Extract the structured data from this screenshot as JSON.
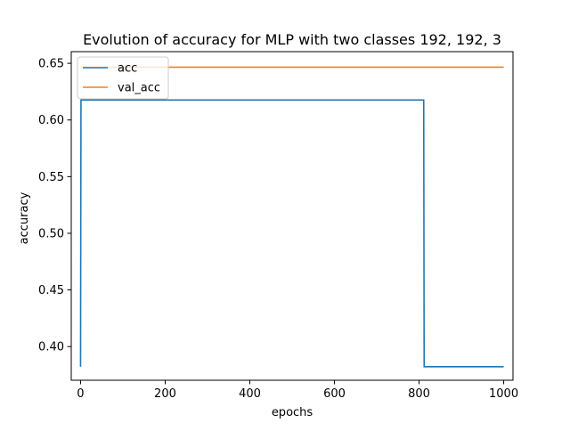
{
  "chart_data": {
    "type": "line",
    "title": "Evolution of accuracy for MLP with two classes 192, 192, 3",
    "xlabel": "epochs",
    "ylabel": "accuracy",
    "xlim": [
      -22,
      1022
    ],
    "ylim": [
      0.3703,
      0.6603
    ],
    "x_ticks": [
      0,
      200,
      400,
      600,
      800,
      1000
    ],
    "x_tick_labels": [
      "0",
      "200",
      "400",
      "600",
      "800",
      "1000"
    ],
    "y_ticks": [
      0.4,
      0.45,
      0.5,
      0.55,
      0.6,
      0.65
    ],
    "y_tick_labels": [
      "0.40",
      "0.45",
      "0.50",
      "0.55",
      "0.60",
      "0.65"
    ],
    "grid": false,
    "legend_position": "upper-left",
    "series": [
      {
        "name": "acc",
        "color": "#1f77b4",
        "x": [
          0,
          1,
          811,
          812,
          1000
        ],
        "y": [
          0.3822,
          0.6176,
          0.6176,
          0.3822,
          0.3822
        ]
      },
      {
        "name": "val_acc",
        "color": "#ff7f0e",
        "x": [
          0,
          1000
        ],
        "y": [
          0.6466,
          0.6466
        ]
      }
    ]
  }
}
